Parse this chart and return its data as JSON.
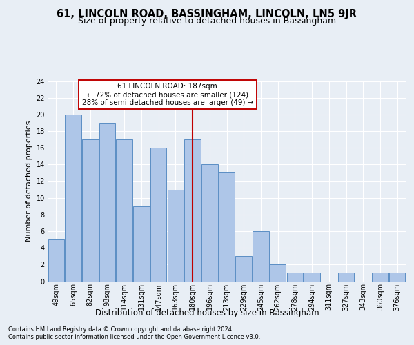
{
  "title": "61, LINCOLN ROAD, BASSINGHAM, LINCOLN, LN5 9JR",
  "subtitle": "Size of property relative to detached houses in Bassingham",
  "xlabel": "Distribution of detached houses by size in Bassingham",
  "ylabel": "Number of detached properties",
  "categories": [
    "49sqm",
    "65sqm",
    "82sqm",
    "98sqm",
    "114sqm",
    "131sqm",
    "147sqm",
    "163sqm",
    "180sqm",
    "196sqm",
    "213sqm",
    "229sqm",
    "245sqm",
    "262sqm",
    "278sqm",
    "294sqm",
    "311sqm",
    "327sqm",
    "343sqm",
    "360sqm",
    "376sqm"
  ],
  "values": [
    5,
    20,
    17,
    19,
    17,
    9,
    16,
    11,
    17,
    14,
    13,
    3,
    6,
    2,
    1,
    1,
    0,
    1,
    0,
    1,
    1
  ],
  "bar_color": "#aec6e8",
  "bar_edge_color": "#5b8ec4",
  "highlight_index": 8,
  "highlight_color": "#c00000",
  "ylim": [
    0,
    24
  ],
  "yticks": [
    0,
    2,
    4,
    6,
    8,
    10,
    12,
    14,
    16,
    18,
    20,
    22,
    24
  ],
  "annotation_title": "61 LINCOLN ROAD: 187sqm",
  "annotation_line1": "← 72% of detached houses are smaller (124)",
  "annotation_line2": "28% of semi-detached houses are larger (49) →",
  "annotation_box_facecolor": "#ffffff",
  "annotation_box_edgecolor": "#c00000",
  "footer1": "Contains HM Land Registry data © Crown copyright and database right 2024.",
  "footer2": "Contains public sector information licensed under the Open Government Licence v3.0.",
  "background_color": "#e8eef5",
  "grid_color": "#ffffff",
  "title_fontsize": 10.5,
  "subtitle_fontsize": 9,
  "tick_fontsize": 7,
  "ylabel_fontsize": 8,
  "xlabel_fontsize": 8.5,
  "annotation_fontsize": 7.5,
  "footer_fontsize": 6
}
